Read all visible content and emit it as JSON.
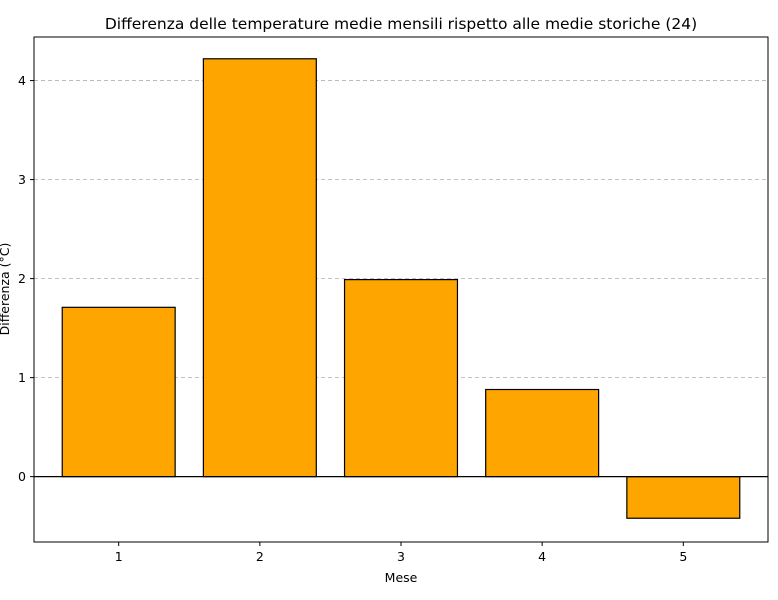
{
  "chart_data": {
    "type": "bar",
    "title": "Differenza delle temperature medie mensili rispetto alle medie storiche (24)",
    "xlabel": "Mese",
    "ylabel": "Differenza (°C)",
    "categories": [
      "1",
      "2",
      "3",
      "4",
      "5"
    ],
    "values": [
      1.71,
      4.22,
      1.99,
      0.88,
      -0.42
    ],
    "ylim": [
      -0.66,
      4.44
    ],
    "yticks": [
      "0",
      "1",
      "2",
      "3",
      "4"
    ],
    "ytick_values": [
      0,
      1,
      2,
      3,
      4
    ],
    "grid": "y-dashed",
    "bar_color": "#FFA500",
    "edge_color": "#000000",
    "zero_line": true
  }
}
